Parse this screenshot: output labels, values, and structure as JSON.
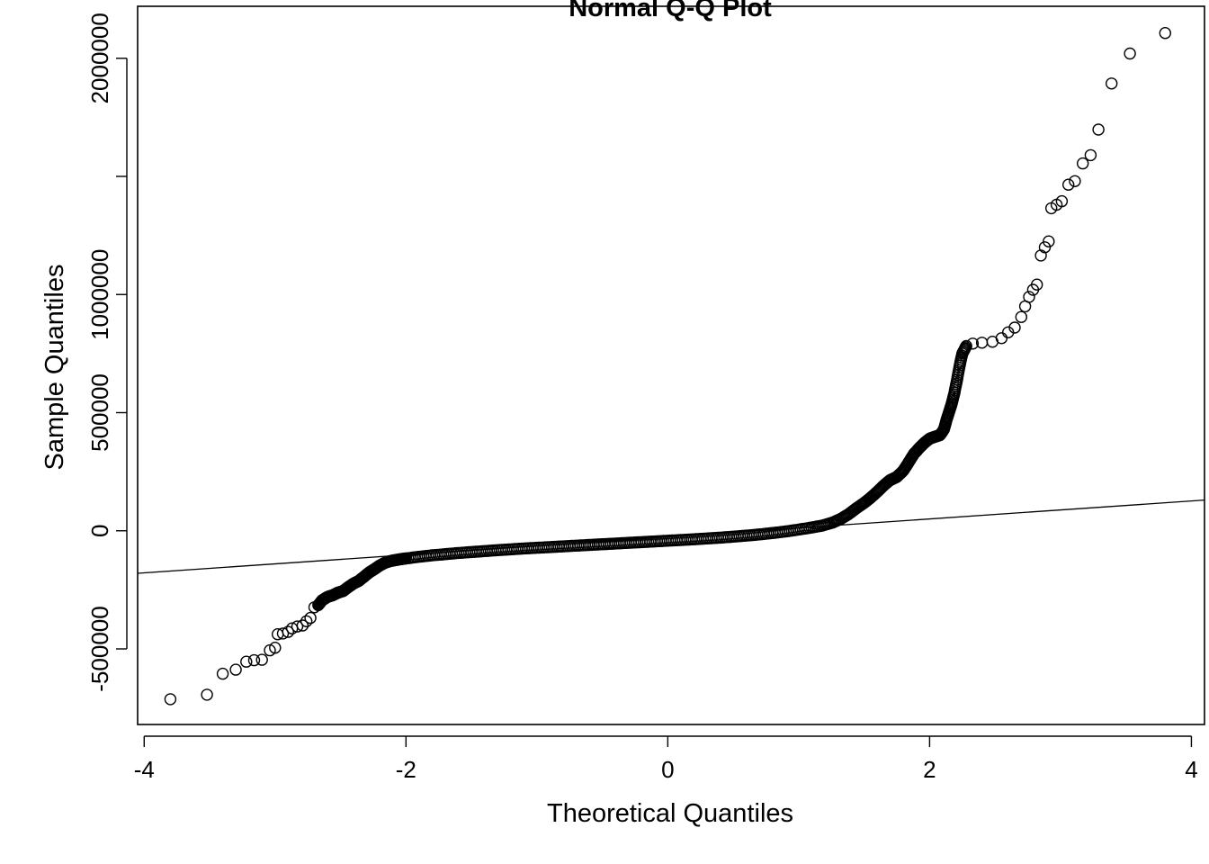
{
  "chart_data": {
    "type": "scatter",
    "title": "Normal Q-Q Plot",
    "xlabel": "Theoretical Quantiles",
    "ylabel": "Sample Quantiles",
    "xlim": [
      -4.05,
      4.1
    ],
    "ylim": [
      -820000,
      2220000
    ],
    "x_ticks": [
      -4,
      -2,
      0,
      2,
      4
    ],
    "x_tick_labels": [
      "-4",
      "-2",
      "0",
      "2",
      "4"
    ],
    "y_ticks": [
      -500000,
      0,
      500000,
      1000000,
      1500000,
      2000000
    ],
    "y_tick_labels": [
      "-500000",
      "0",
      "500000",
      "1000000",
      "",
      "2000000"
    ],
    "grid": false,
    "legend": "none",
    "reference_line": {
      "x1": -4.05,
      "y1": -180000,
      "x2": 4.1,
      "y2": 130000
    },
    "points": [
      [
        -3.8,
        -713000
      ],
      [
        -3.52,
        -694000
      ],
      [
        -3.4,
        -605000
      ],
      [
        -3.3,
        -588000
      ],
      [
        -3.22,
        -554000
      ],
      [
        -3.16,
        -548000
      ],
      [
        -3.1,
        -546000
      ],
      [
        -3.04,
        -506000
      ],
      [
        -3.0,
        -495000
      ],
      [
        -2.98,
        -438000
      ],
      [
        -2.94,
        -435000
      ],
      [
        -2.9,
        -428000
      ],
      [
        -2.87,
        -413000
      ],
      [
        -2.83,
        -405000
      ],
      [
        -2.79,
        -401000
      ],
      [
        -2.76,
        -383000
      ],
      [
        -2.73,
        -369000
      ],
      [
        -2.7,
        -324000
      ],
      [
        -2.67,
        -315000
      ],
      [
        -2.64,
        -294000
      ],
      [
        -2.6,
        -280000
      ],
      [
        -2.56,
        -273000
      ],
      [
        -2.52,
        -262000
      ],
      [
        -2.48,
        -255000
      ],
      [
        -2.44,
        -238000
      ],
      [
        -2.4,
        -223000
      ],
      [
        -2.36,
        -212000
      ],
      [
        -2.32,
        -194000
      ],
      [
        -2.28,
        -176000
      ],
      [
        -2.24,
        -162000
      ],
      [
        -2.2,
        -147000
      ],
      [
        -2.16,
        -135000
      ],
      [
        -2.12,
        -128000
      ],
      [
        -2.08,
        -124000
      ],
      [
        -2.04,
        -120000
      ],
      [
        -2.0,
        -117000
      ],
      [
        -1.9,
        -110000
      ],
      [
        -1.8,
        -104000
      ],
      [
        -1.7,
        -99000
      ],
      [
        -1.6,
        -94000
      ],
      [
        -1.5,
        -90000
      ],
      [
        -1.4,
        -86000
      ],
      [
        -1.3,
        -82000
      ],
      [
        -1.2,
        -78500
      ],
      [
        -1.1,
        -75000
      ],
      [
        -1.0,
        -72000
      ],
      [
        -0.9,
        -69000
      ],
      [
        -0.8,
        -66000
      ],
      [
        -0.7,
        -63000
      ],
      [
        -0.6,
        -60000
      ],
      [
        -0.5,
        -57000
      ],
      [
        -0.4,
        -54000
      ],
      [
        -0.3,
        -51000
      ],
      [
        -0.2,
        -48000
      ],
      [
        -0.1,
        -45000
      ],
      [
        0.0,
        -42000
      ],
      [
        0.1,
        -39000
      ],
      [
        0.2,
        -36000
      ],
      [
        0.3,
        -32500
      ],
      [
        0.4,
        -29000
      ],
      [
        0.5,
        -25000
      ],
      [
        0.6,
        -20500
      ],
      [
        0.7,
        -15500
      ],
      [
        0.8,
        -9500
      ],
      [
        0.9,
        -3000
      ],
      [
        1.0,
        5000
      ],
      [
        1.1,
        14000
      ],
      [
        1.18,
        22000
      ],
      [
        1.26,
        35000
      ],
      [
        1.32,
        50000
      ],
      [
        1.38,
        70000
      ],
      [
        1.44,
        95000
      ],
      [
        1.5,
        118000
      ],
      [
        1.55,
        140000
      ],
      [
        1.6,
        165000
      ],
      [
        1.65,
        192000
      ],
      [
        1.7,
        215000
      ],
      [
        1.75,
        228000
      ],
      [
        1.8,
        255000
      ],
      [
        1.84,
        290000
      ],
      [
        1.88,
        325000
      ],
      [
        1.92,
        350000
      ],
      [
        1.96,
        372000
      ],
      [
        2.0,
        390000
      ],
      [
        2.04,
        398000
      ],
      [
        2.08,
        405000
      ],
      [
        2.11,
        430000
      ],
      [
        2.13,
        470000
      ],
      [
        2.15,
        505000
      ],
      [
        2.17,
        540000
      ],
      [
        2.19,
        585000
      ],
      [
        2.21,
        640000
      ],
      [
        2.23,
        700000
      ],
      [
        2.25,
        750000
      ],
      [
        2.28,
        782000
      ],
      [
        2.33,
        792000
      ],
      [
        2.4,
        796000
      ],
      [
        2.48,
        800000
      ],
      [
        2.55,
        815000
      ],
      [
        2.6,
        840000
      ],
      [
        2.65,
        860000
      ],
      [
        2.7,
        905000
      ],
      [
        2.73,
        950000
      ],
      [
        2.76,
        990000
      ],
      [
        2.79,
        1020000
      ],
      [
        2.82,
        1042000
      ],
      [
        2.85,
        1165000
      ],
      [
        2.88,
        1200000
      ],
      [
        2.91,
        1225000
      ],
      [
        2.93,
        1365000
      ],
      [
        2.97,
        1380000
      ],
      [
        3.01,
        1395000
      ],
      [
        3.06,
        1465000
      ],
      [
        3.11,
        1480000
      ],
      [
        3.17,
        1555000
      ],
      [
        3.23,
        1590000
      ],
      [
        3.29,
        1698000
      ],
      [
        3.39,
        1893000
      ],
      [
        3.53,
        2020000
      ],
      [
        3.8,
        2107000
      ]
    ]
  }
}
